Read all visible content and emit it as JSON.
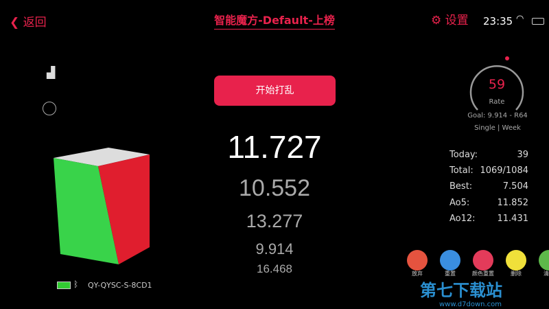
{
  "header": {
    "back": "返回",
    "title": "智能魔方-Default-上榜",
    "settings": "设置",
    "time": "23:35"
  },
  "scramble_button": "开始打乱",
  "times": {
    "current": "11.727",
    "history": [
      "10.552",
      "13.277",
      "9.914",
      "16.468"
    ]
  },
  "rate": {
    "value": "59",
    "label": "Rate",
    "goal": "Goal: 9.914 - R64",
    "mode": "Single | Week",
    "progress": 0.59
  },
  "stats": [
    {
      "k": "Today:",
      "v": "39"
    },
    {
      "k": "Total:",
      "v": "1069/1084"
    },
    {
      "k": "Best:",
      "v": "7.504"
    },
    {
      "k": "Ao5:",
      "v": "11.852"
    },
    {
      "k": "Ao12:",
      "v": "11.431"
    }
  ],
  "device": {
    "name": "QY-QYSC-S-8CD1"
  },
  "actions": [
    {
      "label": "放弃",
      "color": "#e5533f"
    },
    {
      "label": "重置",
      "color": "#3a8ee0"
    },
    {
      "label": "颜色重置",
      "color": "#e33b5a"
    },
    {
      "label": "删除",
      "color": "#f0e03a"
    },
    {
      "label": "清空",
      "color": "#5db84a"
    }
  ],
  "watermark": {
    "text": "第七下载站",
    "url": "www.d7down.com"
  }
}
